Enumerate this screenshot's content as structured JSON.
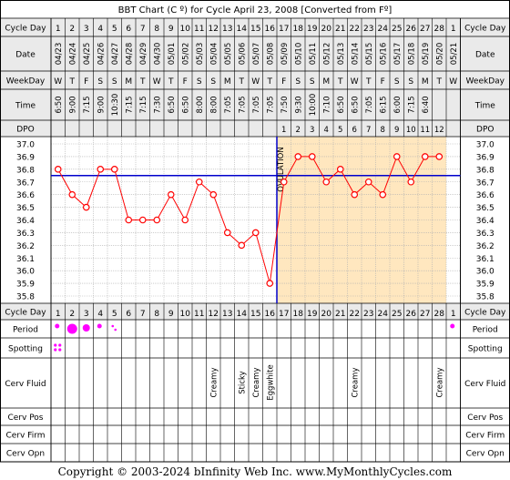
{
  "chart_data": {
    "type": "line",
    "title": "BBT Chart (C º) for Cycle April 23, 2008  [Converted from Fº]",
    "row_labels": {
      "cycle_day": "Cycle Day",
      "date": "Date",
      "weekday": "WeekDay",
      "time": "Time",
      "dpo": "DPO",
      "period": "Period",
      "spotting": "Spotting",
      "cerv_fluid": "Cerv Fluid",
      "cerv_pos": "Cerv Pos",
      "cerv_firm": "Cerv Firm",
      "cerv_opn": "Cerv Opn"
    },
    "days": [
      "1",
      "2",
      "3",
      "4",
      "5",
      "6",
      "7",
      "8",
      "9",
      "10",
      "11",
      "12",
      "13",
      "14",
      "15",
      "16",
      "17",
      "18",
      "19",
      "20",
      "21",
      "22",
      "23",
      "24",
      "25",
      "26",
      "27",
      "28",
      "1"
    ],
    "dates": [
      "04/23",
      "04/24",
      "04/25",
      "04/26",
      "04/27",
      "04/28",
      "04/29",
      "04/30",
      "05/01",
      "05/02",
      "05/03",
      "05/04",
      "05/05",
      "05/06",
      "05/07",
      "05/08",
      "05/09",
      "05/10",
      "05/11",
      "05/12",
      "05/13",
      "05/14",
      "05/15",
      "05/16",
      "05/17",
      "05/18",
      "05/19",
      "05/20",
      "05/21"
    ],
    "weekdays": [
      "W",
      "T",
      "F",
      "S",
      "S",
      "M",
      "T",
      "W",
      "T",
      "F",
      "S",
      "S",
      "M",
      "T",
      "W",
      "T",
      "F",
      "S",
      "S",
      "M",
      "T",
      "W",
      "T",
      "F",
      "S",
      "S",
      "M",
      "T",
      "W"
    ],
    "times": [
      "6:50",
      "9:00",
      "7:15",
      "9:00",
      "10:30",
      "7:15",
      "7:15",
      "7:30",
      "6:50",
      "6:50",
      "8:00",
      "8:00",
      "7:05",
      "7:05",
      "7:05",
      "7:05",
      "7:50",
      "9:30",
      "10:00",
      "7:10",
      "6:50",
      "6:50",
      "7:05",
      "6:15",
      "6:00",
      "7:15",
      "6:40",
      "",
      ""
    ],
    "dpo": [
      "",
      "",
      "",
      "",
      "",
      "",
      "",
      "",
      "",
      "",
      "",
      "",
      "",
      "",
      "",
      "",
      "1",
      "2",
      "3",
      "4",
      "5",
      "6",
      "7",
      "8",
      "9",
      "10",
      "11",
      "12",
      ""
    ],
    "temps": [
      36.8,
      36.6,
      36.5,
      36.8,
      36.8,
      36.4,
      36.4,
      36.4,
      36.6,
      36.4,
      36.7,
      36.6,
      36.3,
      36.2,
      36.3,
      35.9,
      36.7,
      36.9,
      36.9,
      36.7,
      36.8,
      36.6,
      36.7,
      36.6,
      36.9,
      36.7,
      36.9,
      36.9,
      null
    ],
    "ylim": [
      35.8,
      37.0
    ],
    "y_ticks": [
      "37.0",
      "36.9",
      "36.8",
      "36.7",
      "36.6",
      "36.5",
      "36.4",
      "36.3",
      "36.2",
      "36.1",
      "36.0",
      "35.9",
      "35.8"
    ],
    "coverline": 36.75,
    "ovulation_day": 16,
    "ovulation_label": "OVULATION",
    "period_sizes": [
      1,
      3,
      2,
      1,
      0.5,
      0,
      0,
      0,
      0,
      0,
      0,
      0,
      0,
      0,
      0,
      0,
      0,
      0,
      0,
      0,
      0,
      0,
      0,
      0,
      0,
      0,
      0,
      0,
      1
    ],
    "spotting": [
      1,
      0,
      0,
      0,
      0,
      0,
      0,
      0,
      0,
      0,
      0,
      0,
      0,
      0,
      0,
      0,
      0,
      0,
      0,
      0,
      0,
      0,
      0,
      0,
      0,
      0,
      0,
      0,
      0
    ],
    "cerv_fluid": [
      "",
      "",
      "",
      "",
      "",
      "",
      "",
      "",
      "",
      "",
      "",
      "Creamy",
      "",
      "Sticky",
      "Creamy",
      "Eggwhite",
      "",
      "",
      "",
      "",
      "",
      "Creamy",
      "",
      "",
      "",
      "",
      "",
      "Creamy",
      ""
    ],
    "colors": {
      "line": "#ff0000",
      "coverline": "#0000cc",
      "ovulation": "#0000cc",
      "luteal_bg": "#ffe7bf",
      "header_bg": "#eaeaea",
      "period": "#ff00ff"
    }
  },
  "footer": "Copyright © 2003-2024 bInfinity Web Inc.    www.MyMonthlyCycles.com"
}
